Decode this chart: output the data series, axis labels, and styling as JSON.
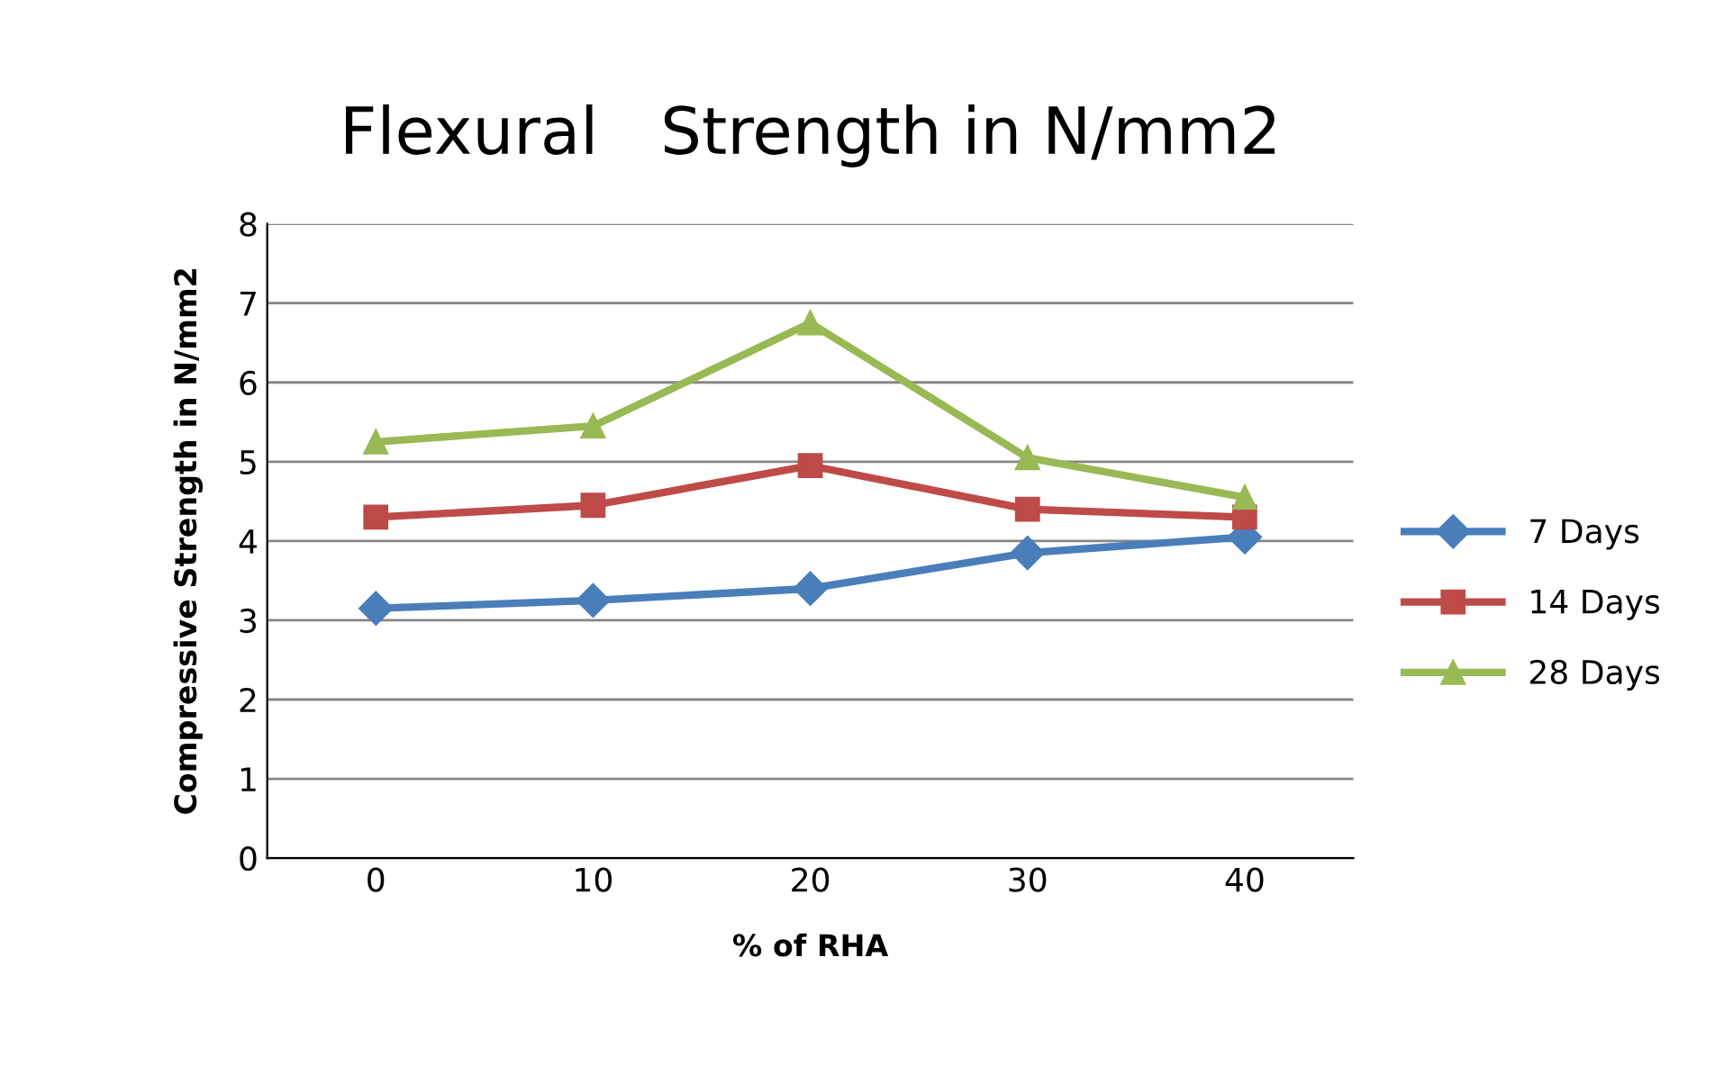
{
  "chart_data": {
    "type": "line",
    "title": "Flexural   Strength in N/mm2",
    "xlabel": "% of RHA",
    "ylabel": "Compressive Strength in N/mm2",
    "categories": [
      "0",
      "10",
      "20",
      "30",
      "40"
    ],
    "series": [
      {
        "name": "7 Days",
        "color": "#4a7ebb",
        "values": [
          3.15,
          3.25,
          3.4,
          3.85,
          4.05
        ],
        "marker": "diamond"
      },
      {
        "name": "14 Days",
        "color": "#be4b48",
        "values": [
          4.3,
          4.45,
          4.95,
          4.4,
          4.3
        ],
        "marker": "square"
      },
      {
        "name": "28 Days",
        "color": "#98b954",
        "values": [
          5.25,
          5.45,
          6.75,
          5.05,
          4.55
        ],
        "marker": "triangle"
      }
    ],
    "ylim": [
      0,
      8
    ],
    "yticks": [
      0,
      1,
      2,
      3,
      4,
      5,
      6,
      7,
      8
    ],
    "grid": "y",
    "legend": "right",
    "line_style": "solid"
  }
}
